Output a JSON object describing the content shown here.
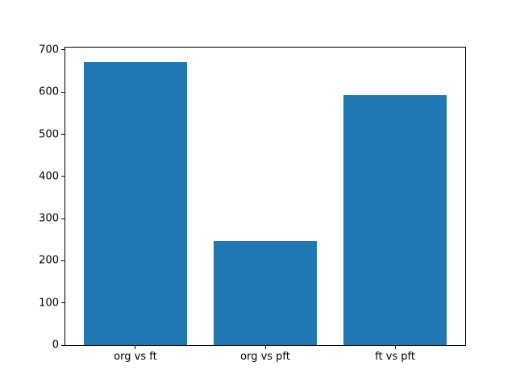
{
  "figure": {
    "background_color": "#ffffff",
    "text_color": "#000000"
  },
  "chart_data": {
    "type": "bar",
    "title": "",
    "xlabel": "",
    "ylabel": "",
    "categories": [
      "org vs ft",
      "org vs pft",
      "ft vs pft"
    ],
    "values": [
      672,
      246,
      593
    ],
    "bar_color": "#1f77b4",
    "bar_width_units": 0.8,
    "bar_positions": [
      0,
      1,
      2
    ],
    "xlim": [
      -0.54,
      2.54
    ],
    "ylim": [
      0,
      705.6
    ],
    "yticks": [
      0,
      100,
      200,
      300,
      400,
      500,
      600,
      700
    ],
    "grid": false,
    "legend": null
  }
}
